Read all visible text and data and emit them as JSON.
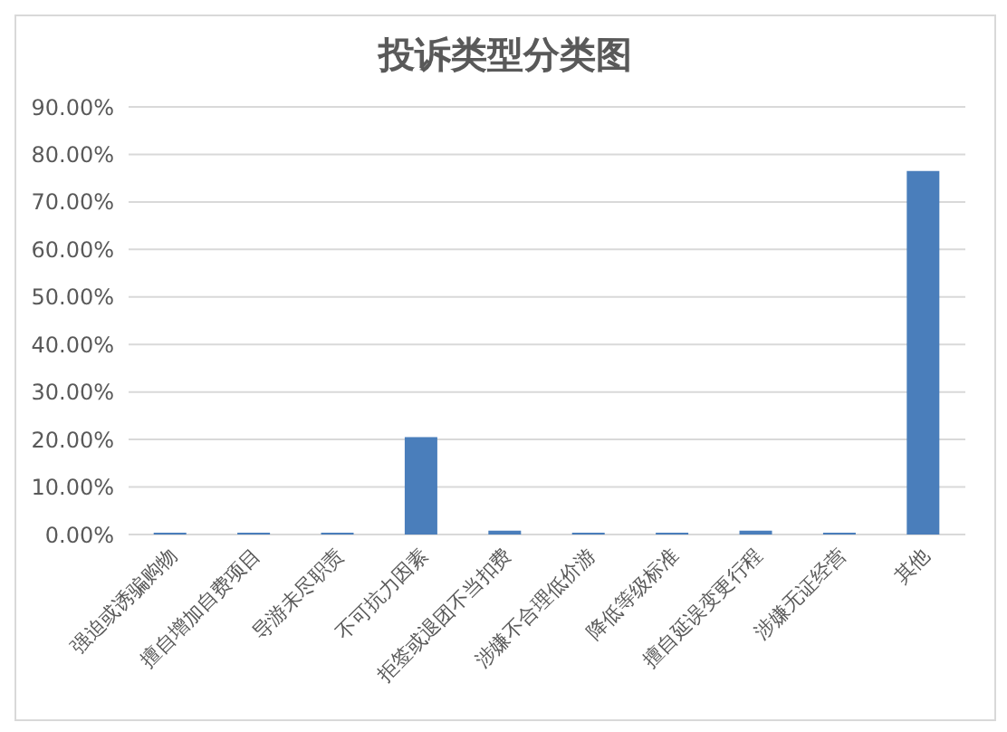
{
  "chart_data": {
    "type": "bar",
    "title": "投诉类型分类图",
    "categories": [
      "强迫或诱骗购物",
      "擅自增加自费项目",
      "导游未尽职责",
      "不可抗力因素",
      "拒签或退团不当扣费",
      "涉嫌不合理低价游",
      "降低等级标准",
      "擅自延误变更行程",
      "涉嫌无证经营",
      "其他"
    ],
    "values": [
      0.4,
      0.4,
      0.4,
      20.5,
      0.8,
      0.4,
      0.4,
      0.8,
      0.4,
      76.5
    ],
    "color": "#4a7ebb",
    "ylim": [
      0,
      90
    ],
    "yticks": [
      {
        "value": 0,
        "label": "0.00%"
      },
      {
        "value": 10,
        "label": "10.00%"
      },
      {
        "value": 20,
        "label": "20.00%"
      },
      {
        "value": 30,
        "label": "30.00%"
      },
      {
        "value": 40,
        "label": "40.00%"
      },
      {
        "value": 50,
        "label": "50.00%"
      },
      {
        "value": 60,
        "label": "60.00%"
      },
      {
        "value": 70,
        "label": "70.00%"
      },
      {
        "value": 80,
        "label": "80.00%"
      },
      {
        "value": 90,
        "label": "90.00%"
      }
    ],
    "grid": "y"
  }
}
